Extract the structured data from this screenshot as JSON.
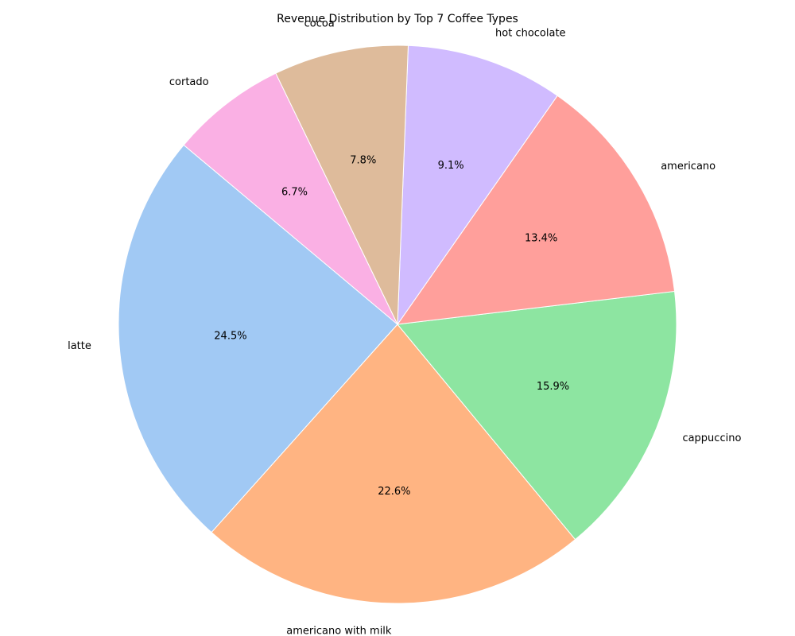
{
  "chart_data": {
    "type": "pie",
    "title": "Revenue Distribution by Top 7 Coffee Types",
    "start_angle_deg": 140,
    "direction": "counterclockwise",
    "slices": [
      {
        "label": "latte",
        "percent": 24.5,
        "percent_label": "24.5%",
        "color": "#a1c9f4"
      },
      {
        "label": "americano with milk",
        "percent": 22.6,
        "percent_label": "22.6%",
        "color": "#ffb482"
      },
      {
        "label": "cappuccino",
        "percent": 15.9,
        "percent_label": "15.9%",
        "color": "#8de5a1"
      },
      {
        "label": "americano",
        "percent": 13.4,
        "percent_label": "13.4%",
        "color": "#ff9f9b"
      },
      {
        "label": "hot chocolate",
        "percent": 9.1,
        "percent_label": "9.1%",
        "color": "#d0bbff"
      },
      {
        "label": "cocoa",
        "percent": 7.8,
        "percent_label": "7.8%",
        "color": "#debb9b"
      },
      {
        "label": "cortado",
        "percent": 6.7,
        "percent_label": "6.7%",
        "color": "#fab0e4"
      }
    ]
  }
}
